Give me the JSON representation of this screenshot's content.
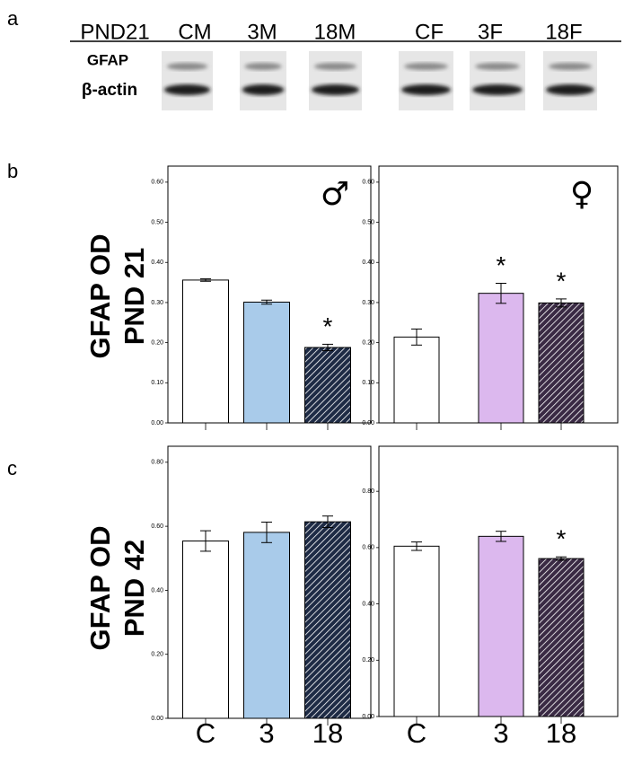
{
  "panel_a": {
    "label": "a",
    "header": [
      "PND21",
      "CM",
      "3M",
      "18M",
      "CF",
      "3F",
      "18F"
    ],
    "rows": [
      "GFAP",
      "β-actin"
    ]
  },
  "panel_b": {
    "label": "b",
    "ylabel": [
      "GFAP OD",
      "PND 21"
    ]
  },
  "panel_c": {
    "label": "c",
    "ylabel": [
      "GFAP OD",
      "PND 42"
    ]
  },
  "chart_data": [
    {
      "type": "bar",
      "symbol": "♂",
      "categories": [
        null,
        null,
        null
      ],
      "values": [
        0.356,
        0.301,
        0.188
      ],
      "errors": [
        0.003,
        0.005,
        0.008
      ],
      "colors": [
        "#ffffff",
        "#a9cbea",
        "#1e2b45"
      ],
      "hatch": [
        false,
        false,
        true
      ],
      "significance": [
        null,
        null,
        "*"
      ],
      "ylim": [
        0,
        0.64
      ],
      "yticks": [
        {
          "value": 0,
          "label": "0.00"
        },
        {
          "value": 0.1,
          "label": "0.10"
        },
        {
          "value": 0.2,
          "label": "0.20"
        },
        {
          "value": 0.3,
          "label": "0.30"
        },
        {
          "value": 0.4,
          "label": "0.40"
        },
        {
          "value": 0.5,
          "label": "0.50"
        },
        {
          "value": 0.6,
          "label": "0.60"
        }
      ]
    },
    {
      "type": "bar",
      "symbol": "♀",
      "categories": [
        null,
        null,
        null
      ],
      "values": [
        0.214,
        0.323,
        0.299
      ],
      "errors": [
        0.02,
        0.025,
        0.01
      ],
      "colors": [
        "#ffffff",
        "#dcb8ee",
        "#3a2a44"
      ],
      "hatch": [
        false,
        false,
        true
      ],
      "significance": [
        null,
        "*",
        "*"
      ],
      "ylim": [
        0,
        0.64
      ],
      "yticks": [
        {
          "value": 0,
          "label": "0.00"
        },
        {
          "value": 0.1,
          "label": "0.10"
        },
        {
          "value": 0.2,
          "label": "0.20"
        },
        {
          "value": 0.3,
          "label": "0.30"
        },
        {
          "value": 0.4,
          "label": "0.40"
        },
        {
          "value": 0.5,
          "label": "0.50"
        },
        {
          "value": 0.6,
          "label": "0.60"
        }
      ]
    },
    {
      "type": "bar",
      "categories": [
        "C",
        "3",
        "18"
      ],
      "values": [
        0.554,
        0.581,
        0.614
      ],
      "errors": [
        0.032,
        0.032,
        0.018
      ],
      "colors": [
        "#ffffff",
        "#a9cbea",
        "#1e2b45"
      ],
      "hatch": [
        false,
        false,
        true
      ],
      "significance": [
        null,
        null,
        null
      ],
      "ylim": [
        0,
        0.85
      ],
      "yticks": [
        {
          "value": 0,
          "label": "0.00"
        },
        {
          "value": 0.2,
          "label": "0.20"
        },
        {
          "value": 0.4,
          "label": "0.40"
        },
        {
          "value": 0.6,
          "label": "0.60"
        },
        {
          "value": 0.8,
          "label": "0.80"
        }
      ]
    },
    {
      "type": "bar",
      "categories": [
        "C",
        "3",
        "18"
      ],
      "values": [
        0.605,
        0.64,
        0.561
      ],
      "errors": [
        0.015,
        0.018,
        0.006
      ],
      "colors": [
        "#ffffff",
        "#dcb8ee",
        "#3a2a44"
      ],
      "hatch": [
        false,
        false,
        true
      ],
      "significance": [
        null,
        null,
        "*"
      ],
      "ylim": [
        0,
        0.96
      ],
      "yticks": [
        {
          "value": 0,
          "label": "0.00"
        },
        {
          "value": 0.2,
          "label": "0.20"
        },
        {
          "value": 0.4,
          "label": "0.40"
        },
        {
          "value": 0.6,
          "label": "0.60"
        },
        {
          "value": 0.8,
          "label": "0.80"
        }
      ]
    }
  ]
}
